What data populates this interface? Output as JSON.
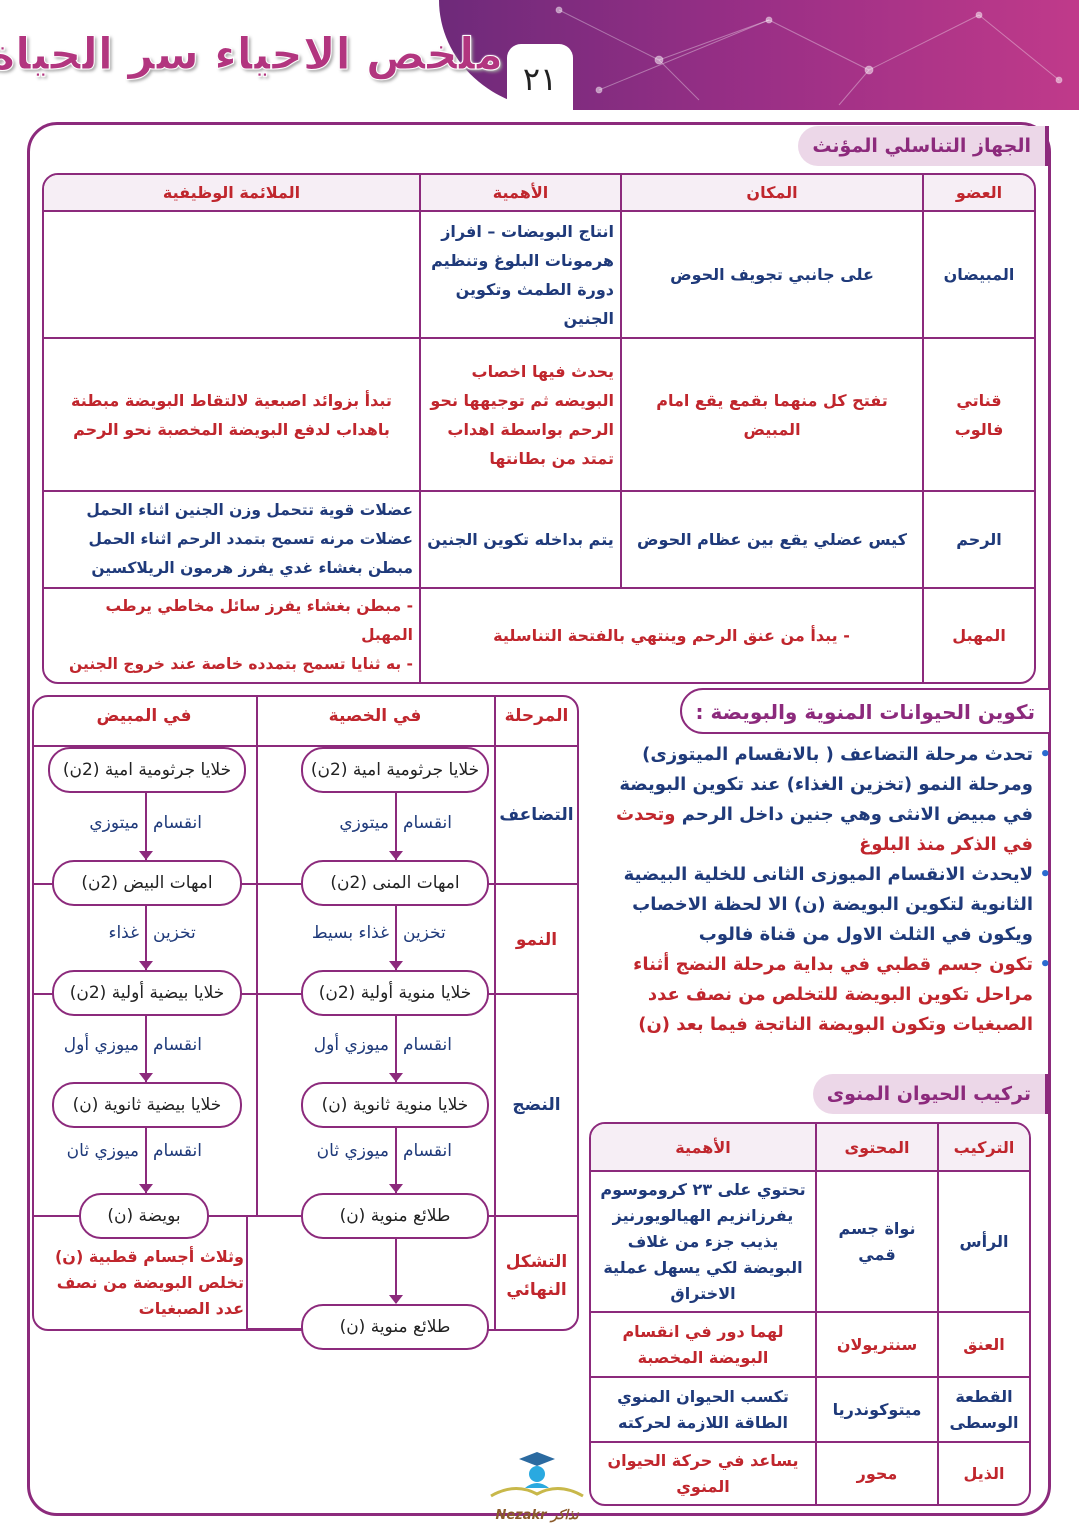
{
  "header": {
    "title": "ملخص الاحياء سر الحياة",
    "page_number": "٢١",
    "brand_color": "#8c2a7c"
  },
  "section1": {
    "title": "الجهاز التناسلي المؤنث",
    "columns": [
      "العضو",
      "المكان",
      "الأهمية",
      "الملائمة الوظيفية"
    ],
    "rows": [
      {
        "organ": "المبيضان",
        "location": "على جانبي تجويف الحوض",
        "importance": "انتاج البويضات – افراز هرمونات البلوغ وتنظيم دورة الطمث وتكوين الجنين",
        "adaptation": ""
      },
      {
        "organ": "قناتي فالوب",
        "location": "تفتح كل منهما بقمع يقع امام المبيض",
        "importance": "يحدث فيها اخصاب البويضه ثم توجيهها نحو الرحم بواسطة اهداب تمتد من بطانتها",
        "adaptation": "تبدأ بزوائد اصبعية لالتقاط البويضة مبطنة باهداب لدفع البويضة المخصبة نحو الرحم"
      },
      {
        "organ": "الرحم",
        "location": "كيس عضلي يقع بين عظام الحوض",
        "importance": "يتم بداخله تكوين الجنين",
        "adaptation_lines": [
          "عضلات قوية تتحمل وزن الجنين اثناء الحمل",
          "عضلات مرنه تسمح بتمدد الرحم اثناء الحمل",
          "مبطن بغشاء غدي يفرز هرمون الريلاكسين"
        ]
      },
      {
        "organ": "المهبل",
        "location_importance": "- يبدأ من عنق الرحم وينتهي بالفتحة التناسلية",
        "adaptation_lines": [
          "- مبطن بغشاء يفرز سائل مخاطي يرطب المهبل",
          "- به ثنايا تسمح بتمدده خاصة عند خروج الجنين"
        ]
      }
    ]
  },
  "section2": {
    "title": "تكوين الحيوانات المنوية والبويضة :",
    "bullets": [
      {
        "blue": "تحدث مرحلة التضاعف ( بالانقسام الميتوزى) ومرحلة النمو (تخزين الغذاء) عند تكوين البويضة في مبيض الانثى وهي جنين داخل الرحم",
        "red": "وتحدث في الذكر منذ البلوغ"
      },
      {
        "blue": "لايحدث الانقسام الميوزى الثانى للخلية البيضية الثانوية لتكوين البويضة (ن) الا لحظة الاخصاب ويكون في الثلث الاول من قناة فالوب"
      },
      {
        "red": "تكون جسم قطبي في بداية مرحلة النضج أثناء مراحل تكوين البويضة للتخلص من نصف عدد الصبغيات وتكون البويضة الناتجة فيما بعد (ن)"
      }
    ]
  },
  "flow": {
    "headers": {
      "stage": "المرحلة",
      "testis": "في الخصية",
      "ovary": "في المبيض"
    },
    "stages": [
      "التضاعف",
      "النمو",
      "النضج",
      "التشكل النهائي"
    ],
    "testis_boxes": [
      "خلايا جرثومية امية (2ن)",
      "امهات المنى (2ن)",
      "خلايا منوية أولية (2ن)",
      "خلايا منوية ثانوية (ن)",
      "طلائع منوية (ن)",
      "طلائع منوية (ن)"
    ],
    "ovary_boxes": [
      "خلايا جرثومية امية (2ن)",
      "امهات البيض (2ن)",
      "خلايا بيضية أولية (2ن)",
      "خلايا بيضية ثانوية (ن)",
      "بويضة (ن)"
    ],
    "testis_steps": [
      [
        "انقسام",
        "ميتوزي"
      ],
      [
        "تخزين",
        "غذاء بسيط"
      ],
      [
        "انقسام",
        "ميوزي أول"
      ],
      [
        "انقسام",
        "ميوزي ثان"
      ]
    ],
    "ovary_steps": [
      [
        "انقسام",
        "ميتوزي"
      ],
      [
        "تخزين",
        "غذاء"
      ],
      [
        "انقسام",
        "ميوزي أول"
      ],
      [
        "انقسام",
        "ميوزي ثان"
      ]
    ],
    "ovary_note": "وثلاث أجسام قطبية (ن) تخلص البويضة من نصف عدد الصبغيات"
  },
  "section3": {
    "title": "تركيب الحيوان المنوى",
    "columns": [
      "التركيب",
      "المحتوى",
      "الأهمية"
    ],
    "rows": [
      {
        "part": "الرأس",
        "content": "نواة جسم قمي",
        "importance": "تحتوي على ٢٣ كروموسوم يفرزانزيم الهيالويورنيز يذيب جزء من غلاف البويضة لكي يسهل عملية الاختراق"
      },
      {
        "part": "العنق",
        "content": "سنتريولان",
        "importance": "لهما دور في انقسام البويضة المخصبة"
      },
      {
        "part": "القطعة الوسطى",
        "content": "ميتوكوندريا",
        "importance": "تكسب الحيوان المنوي الطاقة اللازمة لحركته"
      },
      {
        "part": "الذيل",
        "content": "محور",
        "importance": "يساعد في حركة الحيوان المنوي"
      }
    ]
  },
  "logo": {
    "text": "Nezakr نذاكر"
  }
}
